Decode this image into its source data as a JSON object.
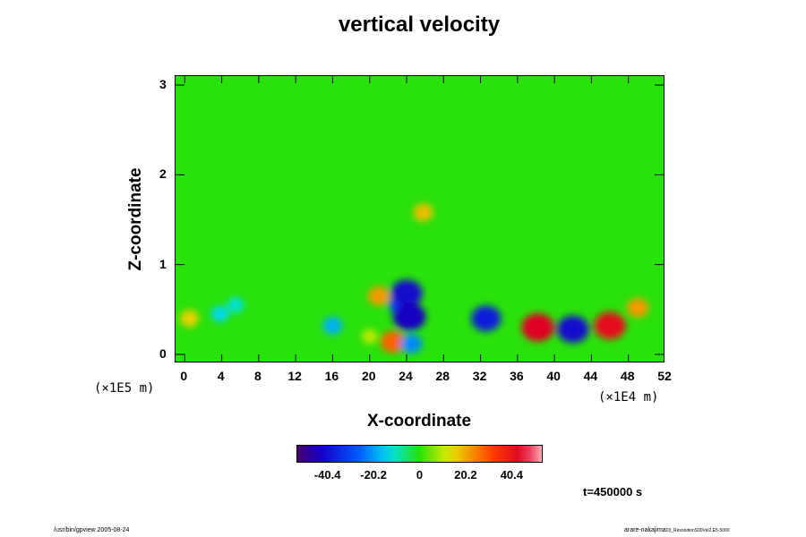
{
  "chart_data": {
    "type": "heatmap",
    "title": "vertical velocity",
    "xlabel": "X-coordinate",
    "ylabel": "Z-coordinate",
    "x_unit": "(×1E4 m)",
    "y_unit": "(×1E5 m)",
    "xlim": [
      -1,
      52
    ],
    "ylim": [
      -0.1,
      3.1
    ],
    "x_ticks": [
      "0",
      "4",
      "8",
      "12",
      "16",
      "20",
      "24",
      "28",
      "32",
      "36",
      "40",
      "44",
      "48",
      "52"
    ],
    "y_ticks": [
      "0",
      "1",
      "2",
      "3"
    ],
    "colorbar": {
      "range": [
        -54,
        54
      ],
      "ticks": [
        "-40.4",
        "-20.2",
        "0",
        "20.2",
        "40.4"
      ],
      "tick_values": [
        -40.4,
        -20.2,
        0,
        20.2,
        40.4
      ]
    },
    "features": [
      {
        "x": 0.5,
        "z": 0.4,
        "value": 16
      },
      {
        "x": 3.8,
        "z": 0.45,
        "value": -14
      },
      {
        "x": 5.5,
        "z": 0.55,
        "value": -12
      },
      {
        "x": 16,
        "z": 0.32,
        "value": -18
      },
      {
        "x": 20,
        "z": 0.2,
        "value": 10
      },
      {
        "x": 21,
        "z": 0.65,
        "value": 22
      },
      {
        "x": 22.5,
        "z": 0.14,
        "value": 28
      },
      {
        "x": 23.5,
        "z": 0.55,
        "value": -30
      },
      {
        "x": 24,
        "z": 0.68,
        "value": -42
      },
      {
        "x": 24.3,
        "z": 0.42,
        "value": -44
      },
      {
        "x": 24.5,
        "z": 0.12,
        "value": -22
      },
      {
        "x": 25.8,
        "z": 1.58,
        "value": 18
      },
      {
        "x": 32.6,
        "z": 0.4,
        "value": -38
      },
      {
        "x": 38.2,
        "z": 0.3,
        "value": 44
      },
      {
        "x": 42,
        "z": 0.28,
        "value": -42
      },
      {
        "x": 46,
        "z": 0.32,
        "value": 42
      },
      {
        "x": 49,
        "z": 0.52,
        "value": 22
      }
    ]
  },
  "time_label": "t=450000 s",
  "footer": {
    "left": "/usr/bin/gpview 2005-08-24",
    "right_main": "arare-nakajima",
    "right_sub": "03_ResolutionS00Vel2.E5-5000"
  }
}
